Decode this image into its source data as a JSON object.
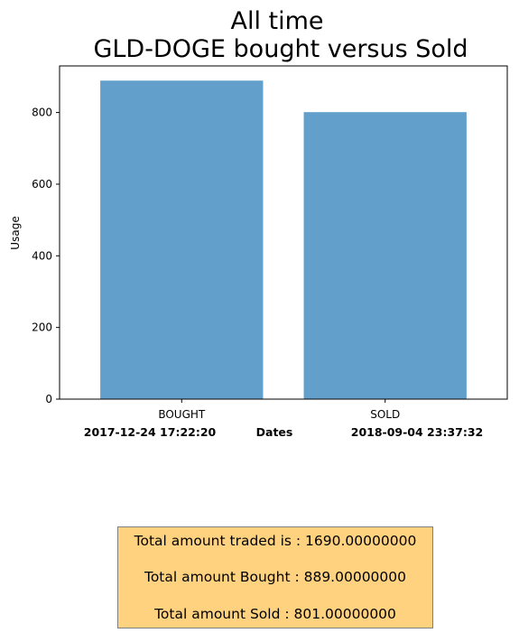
{
  "chart_data": {
    "type": "bar",
    "title": [
      "All time",
      "GLD-DOGE bought versus Sold"
    ],
    "categories": [
      "BOUGHT",
      "SOLD"
    ],
    "values": [
      889,
      801
    ],
    "ylabel": "Usage",
    "xlabel": "Dates",
    "ylim": [
      0,
      930
    ],
    "yticks": [
      0,
      200,
      400,
      600,
      800
    ],
    "bar_color": "#62a0cb",
    "date_start": "2017-12-24 17:22:20",
    "date_end": "2018-09-04 23:37:32",
    "grid": false
  },
  "summary": {
    "total_traded": "Total amount traded is : 1690.00000000",
    "total_bought": "Total amount Bought : 889.00000000",
    "total_sold": "Total amount Sold : 801.00000000",
    "background_color": "#ffd280"
  }
}
